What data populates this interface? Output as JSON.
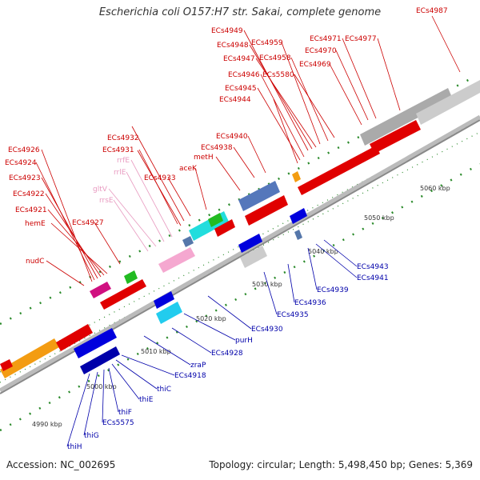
{
  "title": "Escherichia coli O157:H7 str. Sakai, complete genome",
  "footer": {
    "accession": "Accession: NC_002695",
    "topology": "Topology: circular; Length: 5,498,450 bp; Genes: 5,369"
  },
  "kbp_labels": [
    "4990 kbp",
    "5000 kbp",
    "5010 kbp",
    "5020 kbp",
    "5030 kbp",
    "5040 kbp",
    "5050 kbp",
    "5060 kbp"
  ],
  "colors": {
    "forward_gene": "#e00000",
    "reverse_gene": "#0000cc",
    "rna": "#f0a0c8",
    "backbone": "#999999",
    "tick": "#2a8a2a"
  },
  "top_labels": [
    {
      "text": "ECs4926",
      "color": "#cc0000"
    },
    {
      "text": "ECs4924",
      "color": "#cc0000"
    },
    {
      "text": "ECs4923",
      "color": "#cc0000"
    },
    {
      "text": "ECs4922",
      "color": "#cc0000"
    },
    {
      "text": "ECs4921",
      "color": "#cc0000"
    },
    {
      "text": "hemE",
      "color": "#cc0000"
    },
    {
      "text": "ECs4927",
      "color": "#cc0000"
    },
    {
      "text": "nudC",
      "color": "#cc0000"
    },
    {
      "text": "rrfE",
      "color": "#e89ac0"
    },
    {
      "text": "rrlE",
      "color": "#e89ac0"
    },
    {
      "text": "gltV",
      "color": "#e89ac0"
    },
    {
      "text": "rrsE",
      "color": "#e89ac0"
    },
    {
      "text": "ECs4932",
      "color": "#cc0000"
    },
    {
      "text": "ECs4931",
      "color": "#cc0000"
    },
    {
      "text": "ECs4933",
      "color": "#cc0000"
    },
    {
      "text": "aceK",
      "color": "#cc0000"
    },
    {
      "text": "metH",
      "color": "#cc0000"
    },
    {
      "text": "ECs4938",
      "color": "#cc0000"
    },
    {
      "text": "ECs4940",
      "color": "#cc0000"
    },
    {
      "text": "ECs4949",
      "color": "#cc0000"
    },
    {
      "text": "ECs4948",
      "color": "#cc0000"
    },
    {
      "text": "ECs4959",
      "color": "#cc0000"
    },
    {
      "text": "ECs4947",
      "color": "#cc0000"
    },
    {
      "text": "ECs4958",
      "color": "#cc0000"
    },
    {
      "text": "ECs4946",
      "color": "#cc0000"
    },
    {
      "text": "ECs5580",
      "color": "#cc0000"
    },
    {
      "text": "ECs4945",
      "color": "#cc0000"
    },
    {
      "text": "ECs4944",
      "color": "#cc0000"
    },
    {
      "text": "ECs4971",
      "color": "#cc0000"
    },
    {
      "text": "ECs4977",
      "color": "#cc0000"
    },
    {
      "text": "ECs4970",
      "color": "#cc0000"
    },
    {
      "text": "ECs4969",
      "color": "#cc0000"
    },
    {
      "text": "ECs4987",
      "color": "#cc0000"
    }
  ],
  "bottom_labels": [
    {
      "text": "ECs4943",
      "color": "#0000aa"
    },
    {
      "text": "ECs4941",
      "color": "#0000aa"
    },
    {
      "text": "ECs4939",
      "color": "#0000aa"
    },
    {
      "text": "ECs4936",
      "color": "#0000aa"
    },
    {
      "text": "ECs4935",
      "color": "#0000aa"
    },
    {
      "text": "ECs4930",
      "color": "#0000aa"
    },
    {
      "text": "purH",
      "color": "#0000aa"
    },
    {
      "text": "ECs4928",
      "color": "#0000aa"
    },
    {
      "text": "zraP",
      "color": "#0000aa"
    },
    {
      "text": "ECs4918",
      "color": "#0000aa"
    },
    {
      "text": "thiC",
      "color": "#0000aa"
    },
    {
      "text": "thiE",
      "color": "#0000aa"
    },
    {
      "text": "thiF",
      "color": "#0000aa"
    },
    {
      "text": "ECs5575",
      "color": "#0000aa"
    },
    {
      "text": "thiG",
      "color": "#0000aa"
    },
    {
      "text": "thiH",
      "color": "#0000aa"
    }
  ]
}
